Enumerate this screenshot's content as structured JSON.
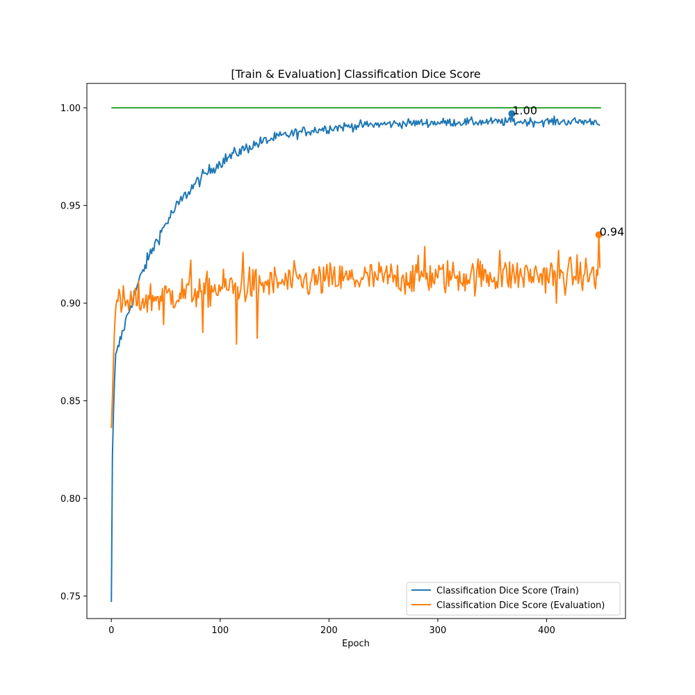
{
  "chart_data": {
    "type": "line",
    "title": "[Train & Evaluation] Classification Dice Score",
    "xlabel": "Epoch",
    "ylabel": "",
    "xlim": [
      -22.5,
      472.5
    ],
    "ylim": [
      0.7385,
      1.0125
    ],
    "xticks": [
      0,
      100,
      200,
      300,
      400
    ],
    "xtick_labels": [
      "0",
      "100",
      "200",
      "300",
      "400"
    ],
    "yticks": [
      0.75,
      0.8,
      0.85,
      0.9,
      0.95,
      1.0
    ],
    "ytick_labels": [
      "0.75",
      "0.80",
      "0.85",
      "0.90",
      "0.95",
      "1.00"
    ],
    "grid": false,
    "legend_position": "lower-right",
    "reference_line": {
      "y": 1.0,
      "x_start": 0,
      "x_end": 450,
      "color": "#2ca02c"
    },
    "series": [
      {
        "name": "Classification Dice Score (Train)",
        "color": "#1f77b4",
        "start": 0.747,
        "plateau": 0.993,
        "end": 0.991,
        "n_epochs": 450,
        "best": {
          "epoch": 368,
          "value": 0.997,
          "label": "1.00"
        }
      },
      {
        "name": "Classification Dice Score (Evaluation)",
        "color": "#ff7f0e",
        "start": 0.836,
        "plateau": 0.915,
        "end": 0.918,
        "n_epochs": 450,
        "best": {
          "epoch": 448,
          "value": 0.935,
          "label": "0.94"
        }
      }
    ]
  }
}
